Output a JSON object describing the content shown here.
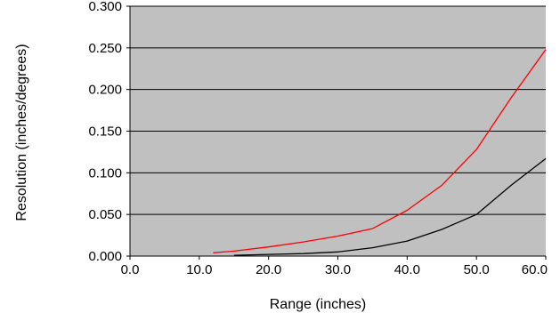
{
  "chart_data": {
    "type": "line",
    "title": "",
    "xlabel": "Range (inches)",
    "ylabel": "Resolution (inches/degrees)",
    "xlim": [
      0,
      60
    ],
    "ylim": [
      0,
      0.3
    ],
    "x_ticks": [
      "0.0",
      "10.0",
      "20.0",
      "30.0",
      "40.0",
      "50.0",
      "60.0"
    ],
    "y_ticks": [
      "0.000",
      "0.050",
      "0.100",
      "0.150",
      "0.200",
      "0.250",
      "0.300"
    ],
    "grid": "horizontal",
    "legend": "none",
    "background_color": "#c0c0c0",
    "series": [
      {
        "color": "#ff0000",
        "x": [
          12,
          15,
          20,
          25,
          30,
          35,
          40,
          45,
          50,
          55,
          60
        ],
        "y": [
          0.004,
          0.006,
          0.011,
          0.017,
          0.024,
          0.033,
          0.055,
          0.085,
          0.128,
          0.19,
          0.248
        ]
      },
      {
        "color": "#000000",
        "x": [
          15,
          20,
          25,
          30,
          35,
          40,
          45,
          50,
          55,
          60
        ],
        "y": [
          0.001,
          0.002,
          0.003,
          0.005,
          0.01,
          0.018,
          0.032,
          0.05,
          0.085,
          0.117
        ]
      }
    ]
  }
}
